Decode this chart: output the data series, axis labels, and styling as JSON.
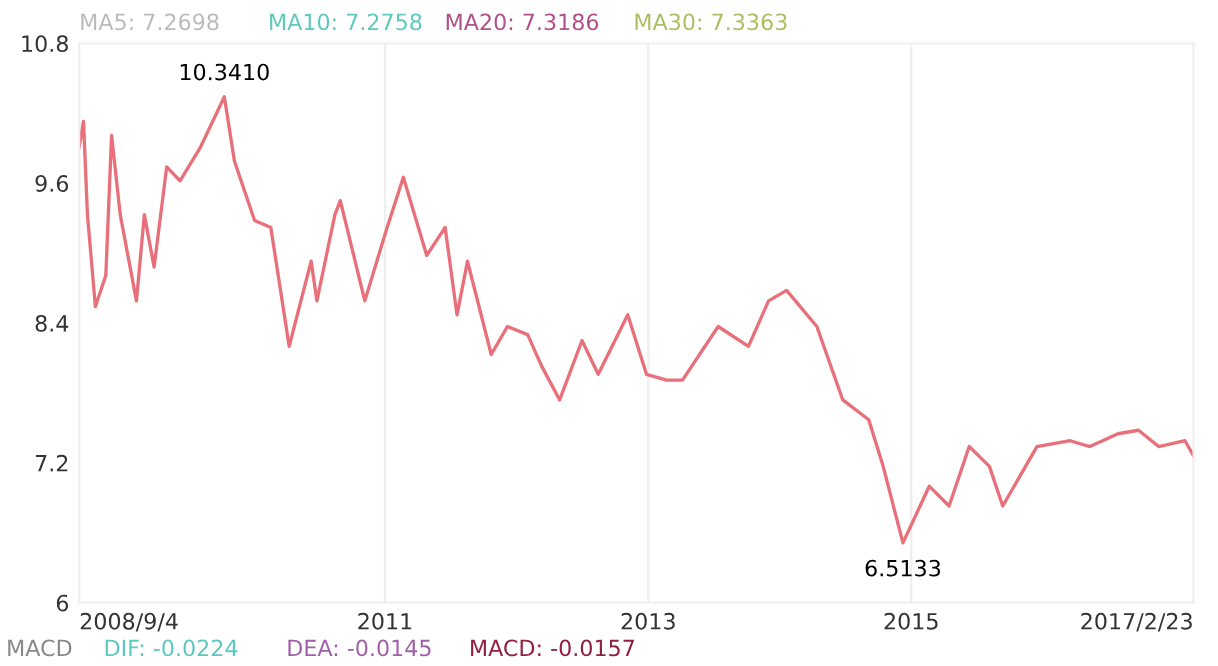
{
  "chart_data": {
    "type": "line",
    "x": [
      "2008-09-04",
      "2008-09-16",
      "2008-09-27",
      "2008-10-19",
      "2008-11-17",
      "2008-12-03",
      "2008-12-27",
      "2009-02-10",
      "2009-03-04",
      "2009-03-31",
      "2009-05-05",
      "2009-06-11",
      "2009-08-07",
      "2009-10-12",
      "2009-11-09",
      "2010-01-04",
      "2010-02-18",
      "2010-04-10",
      "2010-06-10",
      "2010-06-26",
      "2010-08-15",
      "2010-08-30",
      "2010-11-06",
      "2011-01-07",
      "2011-02-21",
      "2011-04-27",
      "2011-06-17",
      "2011-07-20",
      "2011-08-18",
      "2011-10-23",
      "2011-12-07",
      "2012-02-01",
      "2012-03-11",
      "2012-04-30",
      "2012-07-01",
      "2012-08-15",
      "2012-11-05",
      "2012-12-27",
      "2013-02-21",
      "2013-04-06",
      "2013-07-14",
      "2013-10-06",
      "2013-12-01",
      "2014-01-20",
      "2014-04-14",
      "2014-06-25",
      "2014-09-05",
      "2014-10-15",
      "2014-12-09",
      "2015-02-20",
      "2015-04-16",
      "2015-06-11",
      "2015-08-06",
      "2015-09-12",
      "2015-12-16",
      "2016-03-17",
      "2016-05-11",
      "2016-07-28",
      "2016-09-23",
      "2016-11-18",
      "2017-01-30",
      "2017-02-23"
    ],
    "series": [
      {
        "color": "#e8707a",
        "values": [
          9.91,
          10.13,
          9.33,
          8.54,
          8.81,
          10.01,
          9.33,
          8.59,
          9.33,
          8.88,
          9.74,
          9.62,
          9.91,
          10.341,
          9.79,
          9.28,
          9.22,
          8.2,
          8.93,
          8.59,
          9.33,
          9.45,
          8.59,
          9.22,
          9.65,
          8.98,
          9.22,
          8.47,
          8.93,
          8.13,
          8.37,
          8.3,
          8.03,
          7.74,
          8.25,
          7.96,
          8.47,
          7.96,
          7.91,
          7.91,
          8.37,
          8.2,
          8.59,
          8.68,
          8.37,
          7.74,
          7.57,
          7.17,
          6.5133,
          7.0,
          6.83,
          7.34,
          7.17,
          6.83,
          7.34,
          7.39,
          7.34,
          7.45,
          7.48,
          7.34,
          7.39,
          7.26
        ]
      }
    ],
    "ylim": [
      6,
      10.8
    ],
    "yticks": [
      6,
      7.2,
      8.4,
      9.6,
      10.8
    ],
    "xlim": [
      "2008-09-04",
      "2017-02-23"
    ],
    "xticks": [
      {
        "value": "2008-09-04",
        "label": "2008/9/4"
      },
      {
        "value": "2011-01-01",
        "label": "2011"
      },
      {
        "value": "2013-01-01",
        "label": "2013"
      },
      {
        "value": "2015-01-01",
        "label": "2015"
      },
      {
        "value": "2017-02-23",
        "label": "2017/2/23"
      }
    ],
    "grid": "x",
    "annotations": [
      {
        "text": "10.3410",
        "x": "2009-10-12",
        "y": 10.341
      },
      {
        "text": "6.5133",
        "x": "2014-12-09",
        "y": 6.5133
      },
      "MA5: 7.2698",
      "MA10: 7.2758",
      "MA20: 7.3186",
      "MA30: 7.3363",
      "MACD",
      "DIF: -0.0224",
      "DEA: -0.0145",
      "MACD: -0.0157"
    ]
  }
}
